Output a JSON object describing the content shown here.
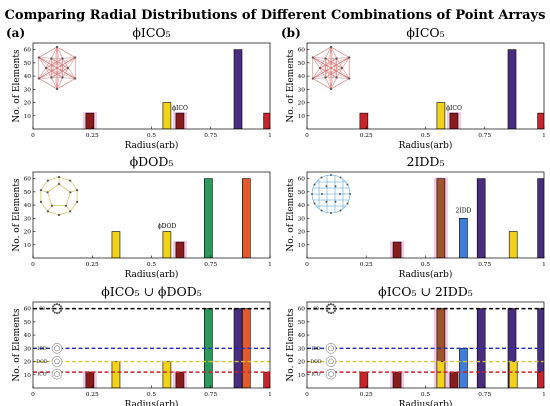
{
  "figure": {
    "title": "Comparing Radial Distributions of Different Combinations of Point Arrays",
    "panel_a": "(a)",
    "panel_b": "(b)"
  },
  "colors": {
    "pink": "#f2c0e4",
    "red": "#c8242b",
    "darkred": "#8b1c1c",
    "brown": "#a0522d",
    "yellow": "#f2d31a",
    "blue": "#3d7fd8",
    "green": "#2a9a5c",
    "orange": "#e05a2b",
    "purple": "#4b2d7f",
    "line60": "#000000",
    "lineIDD": "#2030b0",
    "lineDOD": "#d8c43a",
    "lineICO": "#c8242b"
  },
  "chart_data": [
    {
      "type": "bar",
      "title": "ϕICO₅",
      "xlabel": "Radius(arb)",
      "ylabel": "No. of Elements",
      "xlim": [
        0,
        1
      ],
      "ylim": [
        0,
        65
      ],
      "xticks": [
        "0",
        "0.25",
        "0.5",
        "0.75",
        "1"
      ],
      "yticks": [
        "10",
        "20",
        "30",
        "40",
        "50",
        "60"
      ],
      "inset": "ico",
      "annotations": [
        {
          "text": "ϕICO",
          "x": 0.62,
          "y": 13
        }
      ],
      "bars": [
        {
          "x": 0.24,
          "value": 12,
          "color": "darkred",
          "halo": true
        },
        {
          "x": 0.565,
          "value": 20,
          "color": "yellow",
          "halo": false
        },
        {
          "x": 0.62,
          "value": 12,
          "color": "darkred",
          "halo": true
        },
        {
          "x": 0.865,
          "value": 60,
          "color": "purple",
          "halo": false
        },
        {
          "x": 0.99,
          "value": 12,
          "color": "red",
          "halo": false
        }
      ],
      "hlines": []
    },
    {
      "type": "bar",
      "title": "ϕICO₅",
      "xlabel": "Radius(arb)",
      "ylabel": "No. of Elements",
      "xlim": [
        0,
        1
      ],
      "ylim": [
        0,
        65
      ],
      "xticks": [
        "0",
        "0.25",
        "0.5",
        "0.75",
        "1"
      ],
      "yticks": [
        "10",
        "20",
        "30",
        "40",
        "50",
        "60"
      ],
      "inset": "ico",
      "annotations": [
        {
          "text": "ϕICO",
          "x": 0.62,
          "y": 13
        }
      ],
      "bars": [
        {
          "x": 0.24,
          "value": 12,
          "color": "red",
          "halo": false
        },
        {
          "x": 0.565,
          "value": 20,
          "color": "yellow",
          "halo": false
        },
        {
          "x": 0.62,
          "value": 12,
          "color": "darkred",
          "halo": true
        },
        {
          "x": 0.865,
          "value": 60,
          "color": "purple",
          "halo": false
        },
        {
          "x": 0.99,
          "value": 12,
          "color": "red",
          "halo": false
        }
      ],
      "hlines": []
    },
    {
      "type": "bar",
      "title": "ϕDOD₅",
      "xlabel": "Radius(arb)",
      "ylabel": "No. of Elements",
      "xlim": [
        0,
        1
      ],
      "ylim": [
        0,
        65
      ],
      "xticks": [
        "0",
        "0.25",
        "0.5",
        "0.75",
        "1"
      ],
      "yticks": [
        "10",
        "20",
        "30",
        "40",
        "50",
        "60"
      ],
      "inset": "dod",
      "annotations": [
        {
          "text": "ϕDOD",
          "x": 0.565,
          "y": 21
        }
      ],
      "bars": [
        {
          "x": 0.35,
          "value": 20,
          "color": "yellow",
          "halo": false
        },
        {
          "x": 0.565,
          "value": 20,
          "color": "yellow",
          "halo": false
        },
        {
          "x": 0.62,
          "value": 12,
          "color": "darkred",
          "halo": true
        },
        {
          "x": 0.74,
          "value": 60,
          "color": "green",
          "halo": false
        },
        {
          "x": 0.9,
          "value": 60,
          "color": "orange",
          "halo": false
        }
      ],
      "hlines": []
    },
    {
      "type": "bar",
      "title": "2IDD₅",
      "xlabel": "Radius(arb)",
      "ylabel": "No. of Elements",
      "xlim": [
        0,
        1
      ],
      "ylim": [
        0,
        65
      ],
      "xticks": [
        "0",
        "0.25",
        "0.5",
        "0.75",
        "1"
      ],
      "yticks": [
        "10",
        "20",
        "30",
        "40",
        "50",
        "60"
      ],
      "inset": "idd",
      "annotations": [
        {
          "text": "2IDD",
          "x": 0.66,
          "y": 33
        }
      ],
      "bars": [
        {
          "x": 0.38,
          "value": 12,
          "color": "darkred",
          "halo": true
        },
        {
          "x": 0.565,
          "value": 60,
          "color": "brown",
          "halo": true
        },
        {
          "x": 0.66,
          "value": 30,
          "color": "blue",
          "halo": false
        },
        {
          "x": 0.735,
          "value": 60,
          "color": "purple",
          "halo": false
        },
        {
          "x": 0.87,
          "value": 20,
          "color": "yellow",
          "halo": false
        },
        {
          "x": 0.99,
          "value": 60,
          "color": "purple",
          "halo": false
        }
      ],
      "hlines": []
    },
    {
      "type": "bar",
      "title": "ϕICO₅ ∪ ϕDOD₅",
      "xlabel": "Radius(arb)",
      "ylabel": "No. of Elements",
      "xlim": [
        0,
        1
      ],
      "ylim": [
        0,
        65
      ],
      "xticks": [
        "0",
        "0.25",
        "0.5",
        "0.75",
        "1"
      ],
      "yticks": [
        "10",
        "20",
        "30",
        "40",
        "50",
        "60"
      ],
      "inset": "legend",
      "annotations": [],
      "legend_labels": {
        "l60": "60",
        "idd": "IDD",
        "dod": "DOD",
        "ico": "ICO"
      },
      "bars": [
        {
          "x": 0.24,
          "value": 12,
          "color": "darkred",
          "halo": true
        },
        {
          "x": 0.35,
          "value": 20,
          "color": "yellow",
          "halo": false
        },
        {
          "x": 0.565,
          "value": 20,
          "color": "yellow",
          "halo": false
        },
        {
          "x": 0.62,
          "value": 12,
          "color": "darkred",
          "halo": true
        },
        {
          "x": 0.74,
          "value": 60,
          "color": "green",
          "halo": false
        },
        {
          "x": 0.865,
          "value": 60,
          "color": "purple",
          "halo": false
        },
        {
          "x": 0.9,
          "value": 60,
          "color": "orange",
          "halo": false
        },
        {
          "x": 0.99,
          "value": 12,
          "color": "red",
          "halo": false
        }
      ],
      "hlines": [
        {
          "y": 60,
          "color": "line60"
        },
        {
          "y": 30,
          "color": "lineIDD"
        },
        {
          "y": 20,
          "color": "lineDOD"
        },
        {
          "y": 12,
          "color": "lineICO"
        }
      ]
    },
    {
      "type": "bar",
      "title": "ϕICO₅ ∪ 2IDD₅",
      "xlabel": "Radius(arb)",
      "ylabel": "No. of Elements",
      "xlim": [
        0,
        1
      ],
      "ylim": [
        0,
        65
      ],
      "xticks": [
        "0",
        "0.25",
        "0.5",
        "0.75",
        "1"
      ],
      "yticks": [
        "10",
        "20",
        "30",
        "40",
        "50",
        "60"
      ],
      "inset": "legend",
      "annotations": [],
      "legend_labels": {
        "l60": "60",
        "idd": "IDD",
        "dod": "DOD",
        "ico": "ICO"
      },
      "bars": [
        {
          "x": 0.24,
          "value": 12,
          "color": "red",
          "halo": false
        },
        {
          "x": 0.38,
          "value": 12,
          "color": "darkred",
          "halo": true
        },
        {
          "x": 0.565,
          "value": 60,
          "color": "brown",
          "halo": true
        },
        {
          "x": 0.565,
          "value": 20,
          "color": "yellow",
          "halo": false
        },
        {
          "x": 0.62,
          "value": 12,
          "color": "darkred",
          "halo": true
        },
        {
          "x": 0.66,
          "value": 30,
          "color": "blue",
          "halo": false
        },
        {
          "x": 0.735,
          "value": 60,
          "color": "purple",
          "halo": false
        },
        {
          "x": 0.865,
          "value": 60,
          "color": "purple",
          "halo": false
        },
        {
          "x": 0.87,
          "value": 20,
          "color": "yellow",
          "halo": false
        },
        {
          "x": 0.99,
          "value": 60,
          "color": "purple",
          "halo": false
        },
        {
          "x": 0.99,
          "value": 12,
          "color": "red",
          "halo": false
        }
      ],
      "hlines": [
        {
          "y": 60,
          "color": "line60"
        },
        {
          "y": 30,
          "color": "lineIDD"
        },
        {
          "y": 20,
          "color": "lineDOD"
        },
        {
          "y": 12,
          "color": "lineICO"
        }
      ]
    }
  ]
}
